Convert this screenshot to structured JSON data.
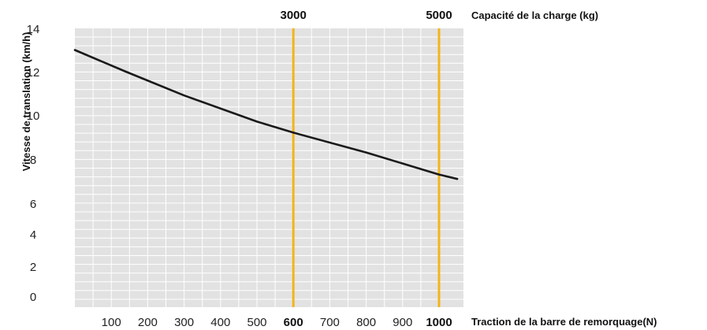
{
  "chart_data": {
    "type": "line",
    "x_label": "Traction de la barre de remorquage(N)",
    "y_label": "Vitesse de translation (km/h)",
    "top_axis_label": "Capacité de la charge (kg)",
    "x_ticks": [
      {
        "value": 100,
        "label": "100",
        "bold": false
      },
      {
        "value": 200,
        "label": "200",
        "bold": false
      },
      {
        "value": 300,
        "label": "300",
        "bold": false
      },
      {
        "value": 400,
        "label": "400",
        "bold": false
      },
      {
        "value": 500,
        "label": "500",
        "bold": false
      },
      {
        "value": 600,
        "label": "600",
        "bold": true
      },
      {
        "value": 700,
        "label": "700",
        "bold": false
      },
      {
        "value": 800,
        "label": "800",
        "bold": false
      },
      {
        "value": 900,
        "label": "900",
        "bold": false
      },
      {
        "value": 1000,
        "label": "1000",
        "bold": true
      }
    ],
    "y_ticks": [
      "0",
      "2",
      "4",
      "6",
      "8",
      "10",
      "12",
      "14"
    ],
    "y_tick_values": [
      0,
      2,
      4,
      6,
      8,
      10,
      12,
      14
    ],
    "x_range": [
      0,
      1050
    ],
    "y_range": [
      0,
      14
    ],
    "markers": [
      {
        "x": 600,
        "label": "3000",
        "color": "#f4b41a"
      },
      {
        "x": 1000,
        "label": "5000",
        "color": "#f4b41a"
      }
    ],
    "series": [
      {
        "color": "#1a1a1a",
        "points": [
          {
            "x": 0,
            "y": 13.0
          },
          {
            "x": 140,
            "y": 12.0
          },
          {
            "x": 300,
            "y": 10.9
          },
          {
            "x": 500,
            "y": 9.7
          },
          {
            "x": 600,
            "y": 9.2
          },
          {
            "x": 800,
            "y": 8.3
          },
          {
            "x": 1000,
            "y": 7.3
          },
          {
            "x": 1050,
            "y": 7.1
          }
        ]
      }
    ],
    "grid": true,
    "plot_background": "#e2e2e2",
    "grid_color": "#ffffff"
  }
}
